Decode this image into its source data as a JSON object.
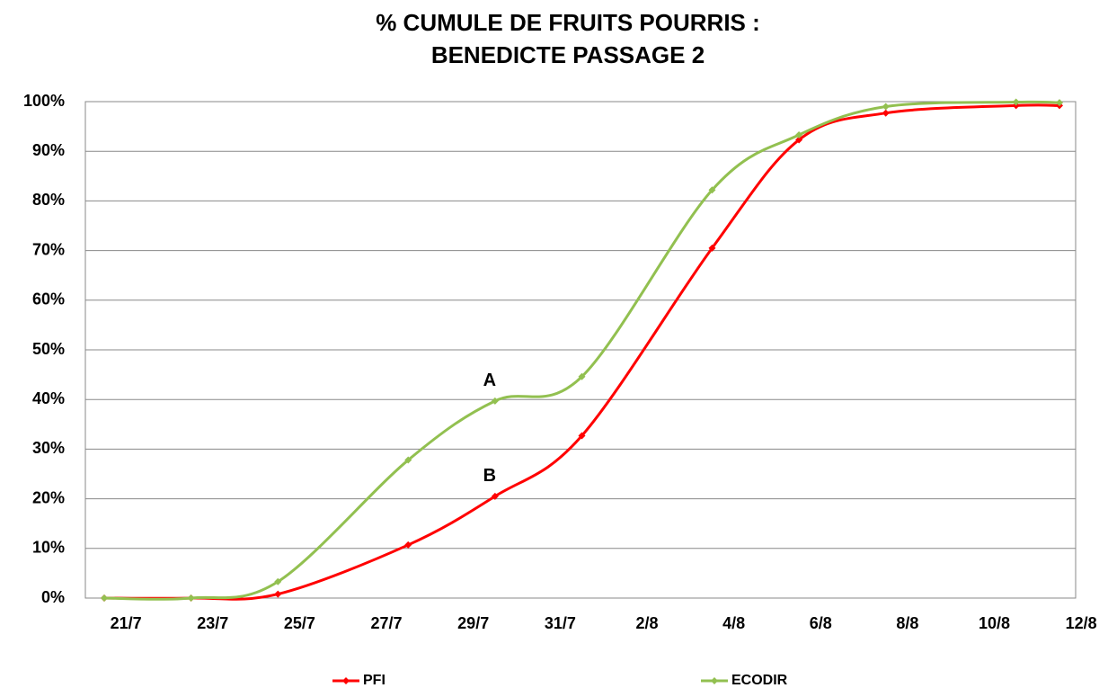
{
  "chart_data": {
    "type": "line",
    "title": [
      "% CUMULE DE FRUITS POURRIS :",
      "BENEDICTE PASSAGE 2"
    ],
    "x": [
      "21/7",
      "23/7",
      "25/7",
      "28/7",
      "30/7",
      "1/8",
      "4/8",
      "6/8",
      "8/8",
      "11/8",
      "12/8"
    ],
    "series": [
      {
        "name": "PFI",
        "color": "#ff0000",
        "values": [
          0,
          0,
          0.8,
          10.7,
          20.5,
          32.7,
          70.5,
          92.3,
          97.7,
          99.2,
          99.2
        ]
      },
      {
        "name": "ECODIR",
        "color": "#92c050",
        "values": [
          0,
          0,
          3.3,
          27.8,
          39.7,
          44.6,
          82.2,
          93.3,
          99.0,
          99.9,
          99.8
        ]
      }
    ],
    "annotations": [
      {
        "text": "A",
        "series": 1,
        "point": 4
      },
      {
        "text": "B",
        "series": 0,
        "point": 4
      }
    ],
    "xlim": [
      "21/7",
      "12/8"
    ],
    "xticks": [
      "21/7",
      "23/7",
      "25/7",
      "27/7",
      "29/7",
      "31/7",
      "2/8",
      "4/8",
      "6/8",
      "8/8",
      "10/8",
      "12/8"
    ],
    "ylim": [
      0,
      100
    ],
    "yticks": [
      {
        "value": 0,
        "label": "0%"
      },
      {
        "value": 10,
        "label": "10%"
      },
      {
        "value": 20,
        "label": "20%"
      },
      {
        "value": 30,
        "label": "30%"
      },
      {
        "value": 40,
        "label": "40%"
      },
      {
        "value": 50,
        "label": "50%"
      },
      {
        "value": 60,
        "label": "60%"
      },
      {
        "value": 70,
        "label": "70%"
      },
      {
        "value": 80,
        "label": "80%"
      },
      {
        "value": 90,
        "label": "90%"
      },
      {
        "value": 100,
        "label": "100%"
      }
    ],
    "grid": true,
    "legend": "bottom"
  }
}
